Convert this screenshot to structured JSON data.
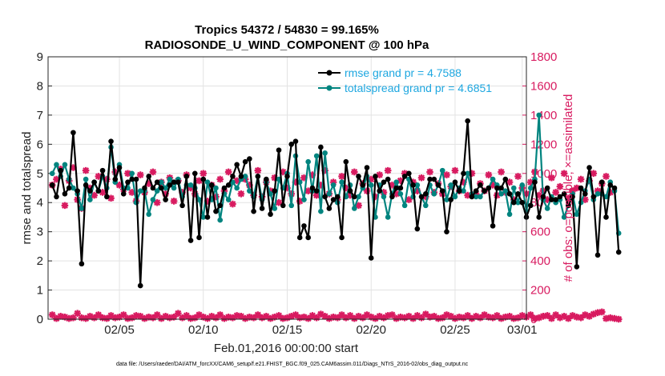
{
  "chart_data": {
    "type": "line",
    "title": "Tropics 54372 / 54830 = 99.165%",
    "subtitle": "RADIOSONDE_U_WIND_COMPONENT @ 100 hPa",
    "xlabel": "Feb.01,2016 00:00:00 start",
    "ylabel": "rmse and totalspread",
    "ylabel_right": "# of obs: o=possible; ×=assimilated",
    "footnote": "data file: /Users/raeder/DAI/ATM_forcXX/CAM6_setup/f.e21.FHIST_BGC.f09_025.CAM6assim.011/Diags_NTrS_2016-02/obs_diag_output.nc",
    "xlim": [
      0.75,
      29.25
    ],
    "ylim": [
      0,
      9
    ],
    "ylim_right": [
      0,
      1800
    ],
    "legend_position": "top-right",
    "grid": true,
    "x_ticks": [
      {
        "day": 5,
        "label": "02/05"
      },
      {
        "day": 10,
        "label": "02/10"
      },
      {
        "day": 15,
        "label": "02/15"
      },
      {
        "day": 20,
        "label": "02/20"
      },
      {
        "day": 25,
        "label": "02/25"
      },
      {
        "day": 29,
        "label": "03/01"
      }
    ],
    "y_ticks": [
      "0",
      "1",
      "2",
      "3",
      "4",
      "5",
      "6",
      "7",
      "8",
      "9"
    ],
    "y_ticks_right": [
      "0",
      "200",
      "400",
      "600",
      "800",
      "1000",
      "1200",
      "1400",
      "1600",
      "1800"
    ],
    "x_start": 1.0,
    "x_step": 0.25,
    "series": [
      {
        "name": "rmse grand pr = 4.7588",
        "color": "#000000",
        "marker": "circle",
        "values": [
          4.6,
          4.2,
          5.1,
          4.3,
          4.5,
          6.4,
          4.4,
          1.9,
          4.6,
          4.4,
          4.7,
          4.4,
          5.1,
          4.2,
          6.1,
          4.8,
          5.2,
          4.3,
          4.7,
          4.8,
          4.8,
          1.15,
          4.5,
          4.9,
          4.5,
          4.7,
          4.5,
          4.1,
          4.6,
          4.7,
          4.7,
          3.9,
          4.9,
          2.7,
          5.0,
          2.8,
          4.8,
          3.5,
          4.6,
          3.7,
          3.9,
          4.5,
          4.6,
          4.9,
          5.3,
          4.9,
          5.4,
          5.5,
          3.7,
          4.9,
          3.8,
          4.8,
          3.6,
          4.4,
          5.8,
          3.9,
          4.9,
          6.0,
          6.1,
          2.8,
          3.2,
          2.8,
          4.5,
          4.4,
          5.9,
          4.2,
          3.8,
          4.1,
          4.2,
          2.8,
          5.4,
          4.4,
          4.2,
          4.9,
          4.6,
          5.2,
          2.1,
          4.9,
          4.4,
          4.7,
          4.8,
          4.2,
          4.5,
          4.5,
          4.9,
          5.0,
          4.6,
          3.1,
          4.2,
          4.3,
          4.8,
          4.8,
          4.6,
          4.4,
          3.0,
          4.1,
          4.7,
          4.4,
          5.0,
          6.8,
          4.2,
          4.4,
          4.6,
          4.4,
          4.5,
          3.2,
          4.5,
          4.5,
          4.8,
          4.3,
          4.0,
          4.3,
          4.0,
          3.5,
          3.9,
          4.7,
          3.5,
          4.2,
          4.5,
          4.1,
          4.1,
          4.2,
          4.3,
          3.9,
          4.2,
          1.8,
          4.5,
          4.3,
          5.2,
          4.2,
          2.2,
          4.7,
          3.5,
          4.6,
          4.5,
          2.3
        ]
      },
      {
        "name": "totalspread grand pr = 4.6851",
        "color": "#00847f",
        "marker": "circle",
        "values": [
          5.0,
          5.3,
          4.9,
          5.3,
          4.8,
          4.5,
          4.3,
          3.8,
          4.8,
          4.1,
          4.7,
          4.4,
          4.9,
          4.5,
          5.9,
          4.7,
          5.3,
          4.5,
          4.5,
          5.0,
          4.0,
          4.4,
          4.4,
          3.6,
          4.1,
          4.4,
          4.7,
          4.5,
          4.8,
          4.5,
          4.8,
          4.2,
          4.6,
          4.6,
          4.5,
          4.1,
          3.5,
          4.7,
          4.1,
          4.5,
          3.4,
          4.3,
          4.1,
          4.7,
          4.5,
          4.8,
          4.9,
          4.4,
          4.2,
          4.9,
          4.1,
          4.7,
          4.3,
          3.8,
          4.8,
          4.5,
          5.0,
          3.9,
          5.6,
          4.7,
          4.1,
          5.4,
          4.4,
          5.6,
          3.7,
          5.7,
          4.3,
          4.6,
          4.0,
          4.7,
          4.2,
          4.6,
          3.8,
          4.2,
          4.5,
          4.9,
          4.6,
          3.5,
          4.6,
          4.2,
          3.5,
          4.3,
          4.7,
          4.3,
          3.9,
          4.8,
          4.2,
          4.6,
          4.2,
          3.9,
          4.6,
          4.3,
          4.6,
          5.1,
          4.1,
          4.6,
          4.2,
          4.5,
          4.4,
          5.0,
          4.3,
          4.2,
          4.2,
          4.4,
          4.5,
          4.8,
          4.6,
          4.3,
          4.4,
          3.6,
          4.5,
          4.0,
          4.6,
          3.7,
          4.5,
          4.8,
          7.0,
          4.1,
          3.8,
          4.2,
          4.0,
          4.1,
          3.5,
          3.9,
          4.3,
          3.6,
          4.0,
          4.4,
          4.8,
          4.1,
          4.3,
          4.3,
          4.2,
          4.7,
          4.4,
          2.95
        ]
      }
    ],
    "obs_series": [
      {
        "name": "assimilated",
        "color": "#d81b60",
        "marker": "x",
        "axis": "right",
        "values": [
          920,
          960,
          1030,
          780,
          950,
          1040,
          820,
          760,
          1020,
          900,
          850,
          980,
          870,
          960,
          830,
          1010,
          920,
          890,
          1000,
          870,
          810,
          990,
          870,
          930,
          1010,
          800,
          940,
          860,
          970,
          810,
          950,
          870,
          990,
          900,
          860,
          950,
          1000,
          810,
          920,
          840,
          960,
          880,
          1010,
          790,
          950,
          860,
          960,
          920,
          850,
          1020,
          840,
          940,
          880,
          970,
          800,
          1010,
          900,
          860,
          940,
          810,
          970,
          880,
          990,
          850,
          920,
          1020,
          860,
          940,
          820,
          980,
          900,
          850,
          1010,
          780,
          930,
          880,
          960,
          840,
          990,
          870,
          1020,
          920,
          860,
          950,
          1000,
          820,
          940,
          880,
          970,
          840,
          1010,
          870,
          930,
          860,
          990,
          910,
          1020,
          880,
          940,
          850,
          1000,
          860,
          930,
          880,
          990,
          920,
          850,
          1010,
          870,
          940,
          820,
          980,
          900,
          860,
          940,
          1010,
          850,
          880,
          820,
          970,
          870,
          910,
          1000,
          830,
          880,
          900,
          960,
          820,
          950,
          1000,
          880,
          930,
          980,
          870
        ]
      },
      {
        "name": "possible",
        "color": "#d81b60",
        "marker": "o",
        "axis": "right",
        "values": [
          30,
          5,
          20,
          15,
          5,
          10,
          40,
          10,
          5,
          20,
          10,
          30,
          10,
          5,
          25,
          10,
          15,
          30,
          5,
          10,
          25,
          20,
          5,
          15,
          10,
          30,
          5,
          20,
          10,
          15,
          40,
          10,
          25,
          5,
          10,
          30,
          15,
          5,
          20,
          10,
          30,
          5,
          15,
          10,
          25,
          20,
          5,
          15,
          10,
          30,
          10,
          20,
          5,
          15,
          25,
          5,
          10,
          20,
          30,
          10,
          15,
          5,
          25,
          10,
          35,
          20,
          5,
          15,
          10,
          30,
          10,
          25,
          5,
          20,
          10,
          30,
          15,
          5,
          20,
          10,
          25,
          30,
          5,
          15,
          10,
          20,
          5,
          25,
          10,
          35,
          15,
          20,
          5,
          10,
          30,
          20,
          5,
          15,
          10,
          25,
          5,
          20,
          10,
          30,
          15,
          10,
          25,
          5,
          15,
          20,
          5,
          10,
          25,
          15,
          30,
          5,
          10,
          20,
          25,
          5,
          30,
          10,
          20,
          5,
          25,
          15,
          10,
          30,
          20,
          35,
          45,
          50,
          5,
          10,
          5,
          0
        ]
      }
    ]
  },
  "legend": [
    {
      "label": "rmse grand pr = 4.7588",
      "color": "#000000"
    },
    {
      "label": "totalspread grand pr = 4.6851",
      "color": "#00847f"
    }
  ],
  "colors": {
    "rmse": "#000000",
    "spread": "#00847f",
    "obs": "#d81b60",
    "legend_text": "#1ea7e0"
  }
}
